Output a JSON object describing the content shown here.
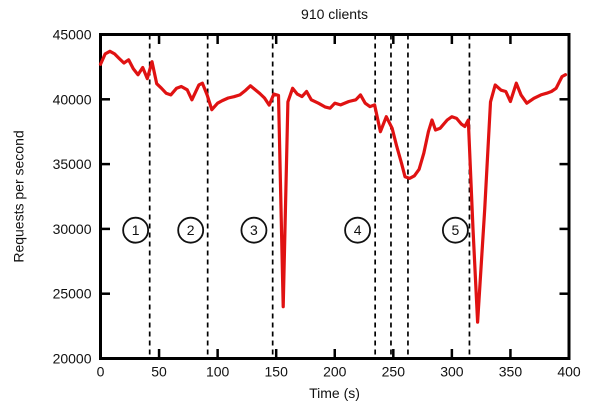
{
  "page": {
    "background": "#ffffff"
  },
  "header": {
    "title": "910 clients"
  },
  "chart_data": {
    "type": "line",
    "title": "910 clients",
    "xlabel": "Time (s)",
    "ylabel": "Requests per second",
    "xlim": [
      0,
      400
    ],
    "ylim": [
      20000,
      45000
    ],
    "xticks": [
      0,
      50,
      100,
      150,
      200,
      250,
      300,
      350,
      400
    ],
    "yticks": [
      20000,
      25000,
      30000,
      35000,
      40000,
      45000
    ],
    "grid": false,
    "legend": "none",
    "line_color": "#e01212",
    "axis_color": "#000000",
    "text_color": "#111111",
    "vlines": {
      "style": "dashed",
      "color": "#000000",
      "x": [
        42,
        91.5,
        147,
        234.5,
        248,
        262.5,
        315
      ]
    },
    "annotations": [
      {
        "label": "1",
        "x": 30,
        "y": 29900
      },
      {
        "label": "2",
        "x": 77,
        "y": 29900
      },
      {
        "label": "3",
        "x": 131,
        "y": 29900
      },
      {
        "label": "4",
        "x": 219.5,
        "y": 29900
      },
      {
        "label": "5",
        "x": 303,
        "y": 29900
      }
    ],
    "series": [
      {
        "name": "910 clients",
        "color": "#e01212",
        "points": [
          [
            0,
            42700
          ],
          [
            4,
            43500
          ],
          [
            8,
            43700
          ],
          [
            12,
            43500
          ],
          [
            16,
            43150
          ],
          [
            20,
            42800
          ],
          [
            24,
            43050
          ],
          [
            28,
            42350
          ],
          [
            32,
            41900
          ],
          [
            36,
            42450
          ],
          [
            40,
            41600
          ],
          [
            44,
            42900
          ],
          [
            48,
            41200
          ],
          [
            52,
            40860
          ],
          [
            56,
            40470
          ],
          [
            60,
            40340
          ],
          [
            65,
            40860
          ],
          [
            69,
            40990
          ],
          [
            74,
            40730
          ],
          [
            78,
            39960
          ],
          [
            84,
            41110
          ],
          [
            87,
            41240
          ],
          [
            91,
            40340
          ],
          [
            95,
            39200
          ],
          [
            100,
            39700
          ],
          [
            104,
            39900
          ],
          [
            109,
            40100
          ],
          [
            114,
            40200
          ],
          [
            119,
            40340
          ],
          [
            124,
            40700
          ],
          [
            128,
            41040
          ],
          [
            132,
            40750
          ],
          [
            136,
            40450
          ],
          [
            140,
            40100
          ],
          [
            144,
            39550
          ],
          [
            148,
            40400
          ],
          [
            152,
            40300
          ],
          [
            156,
            24000
          ],
          [
            160,
            39800
          ],
          [
            164,
            40850
          ],
          [
            168,
            40400
          ],
          [
            172,
            40210
          ],
          [
            176,
            40600
          ],
          [
            180,
            39960
          ],
          [
            186,
            39700
          ],
          [
            192,
            39400
          ],
          [
            196,
            39310
          ],
          [
            200,
            39700
          ],
          [
            205,
            39570
          ],
          [
            212,
            39830
          ],
          [
            218,
            39960
          ],
          [
            222,
            40340
          ],
          [
            226,
            39700
          ],
          [
            230,
            39440
          ],
          [
            234,
            39570
          ],
          [
            239,
            37500
          ],
          [
            244,
            38660
          ],
          [
            249,
            37770
          ],
          [
            253,
            36350
          ],
          [
            257,
            35070
          ],
          [
            260,
            34030
          ],
          [
            264,
            33900
          ],
          [
            268,
            34100
          ],
          [
            272,
            34600
          ],
          [
            276,
            35840
          ],
          [
            280,
            37500
          ],
          [
            283,
            38400
          ],
          [
            286,
            37630
          ],
          [
            290,
            37770
          ],
          [
            296,
            38400
          ],
          [
            300,
            38660
          ],
          [
            304,
            38530
          ],
          [
            308,
            38100
          ],
          [
            311,
            37900
          ],
          [
            314,
            38400
          ],
          [
            318,
            30000
          ],
          [
            322,
            22800
          ],
          [
            328,
            31500
          ],
          [
            333,
            39800
          ],
          [
            337,
            41100
          ],
          [
            342,
            40700
          ],
          [
            346,
            40600
          ],
          [
            350,
            39830
          ],
          [
            355,
            41240
          ],
          [
            359,
            40340
          ],
          [
            364,
            39700
          ],
          [
            370,
            40080
          ],
          [
            376,
            40340
          ],
          [
            381,
            40470
          ],
          [
            385,
            40600
          ],
          [
            389,
            40850
          ],
          [
            394,
            41750
          ],
          [
            397,
            41900
          ]
        ]
      }
    ]
  }
}
